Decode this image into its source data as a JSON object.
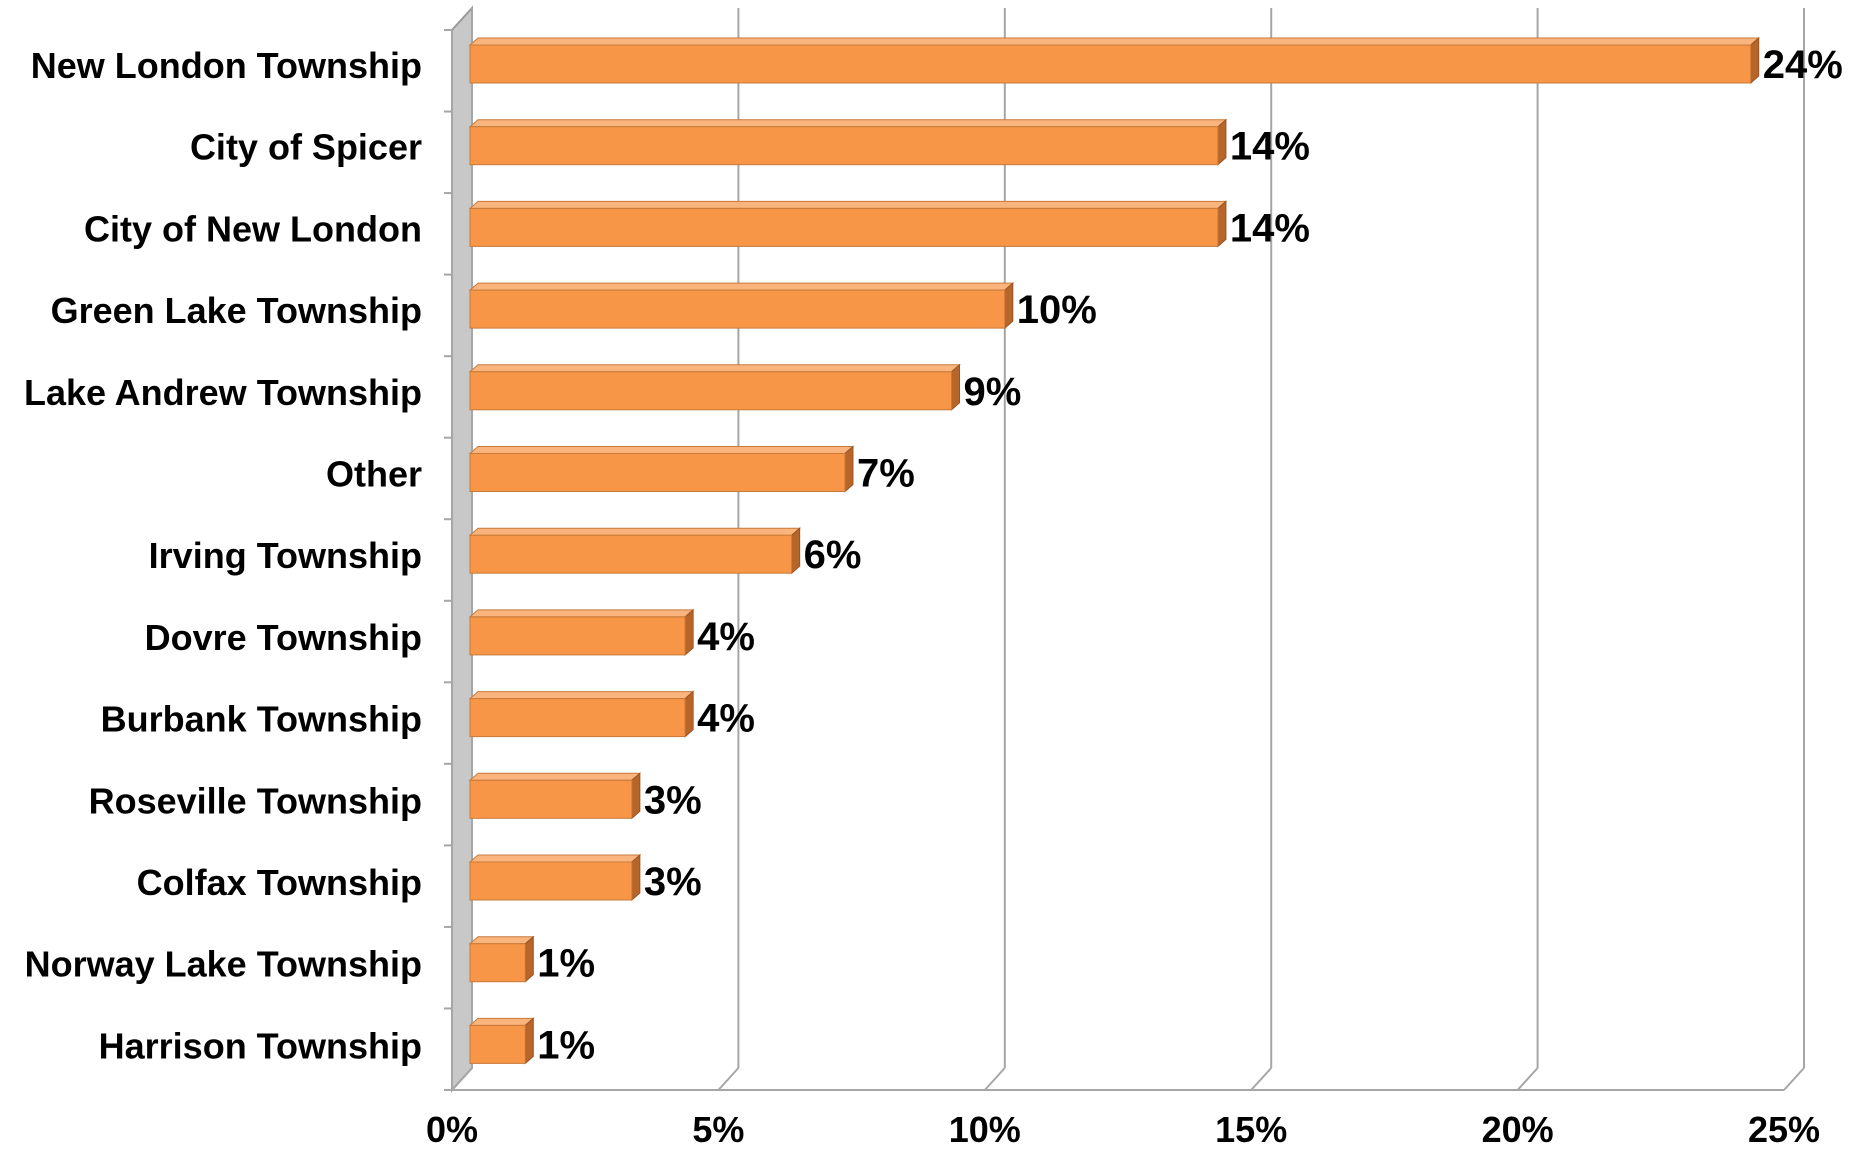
{
  "chart_data": {
    "type": "bar",
    "orientation": "horizontal",
    "categories": [
      "New London Township",
      "City of Spicer",
      "City of New London",
      "Green Lake Township",
      "Lake Andrew Township",
      "Other",
      "Irving Township",
      "Dovre Township",
      "Burbank Township",
      "Roseville Township",
      "Colfax Township",
      "Norway Lake Township",
      "Harrison Township"
    ],
    "values": [
      24,
      14,
      14,
      10,
      9,
      7,
      6,
      4,
      4,
      3,
      3,
      1,
      1
    ],
    "value_labels": [
      "24%",
      "14%",
      "14%",
      "10%",
      "9%",
      "7%",
      "6%",
      "4%",
      "4%",
      "3%",
      "3%",
      "1%",
      "1%"
    ],
    "xlim": [
      0,
      25
    ],
    "xticks": [
      0,
      5,
      10,
      15,
      20,
      25
    ],
    "xtick_labels": [
      "0%",
      "5%",
      "10%",
      "15%",
      "20%",
      "25%"
    ],
    "title": "",
    "xlabel": "",
    "ylabel": "",
    "grid": "vertical",
    "legend": "none",
    "style": "3d",
    "colors": {
      "bar_front": "#F79646",
      "bar_top": "#FAB57E",
      "bar_side": "#B8652A",
      "grid": "#A6A6A6",
      "wall": "#C8C8C8"
    }
  }
}
